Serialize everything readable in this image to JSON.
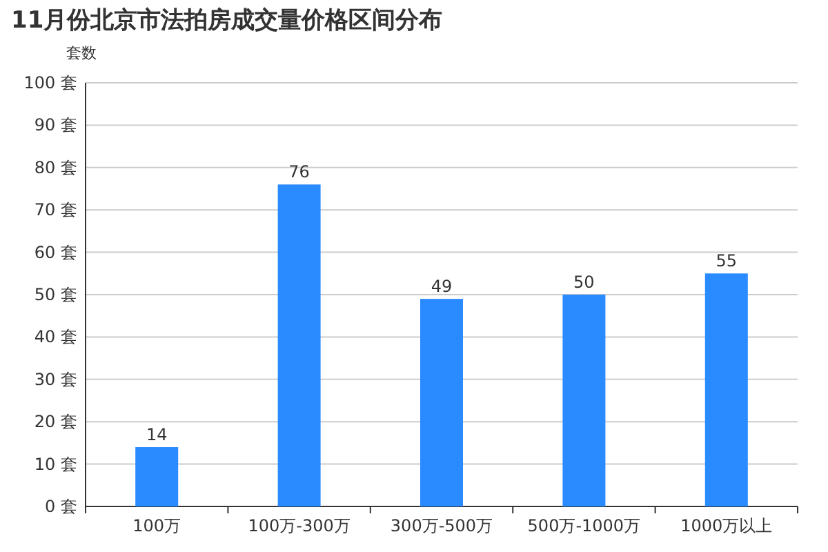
{
  "chart_data": {
    "type": "bar",
    "title": "11月份北京市法拍房成交量价格区间分布",
    "ylabel": "套数",
    "categories": [
      "100万",
      "100万-300万",
      "300万-500万",
      "500万-1000万",
      "1000万以上"
    ],
    "values": [
      14,
      76,
      49,
      50,
      55
    ],
    "color": "#2a8aff",
    "data_labels": true,
    "ylim": [
      0,
      100
    ],
    "yticks": [
      {
        "value": 0,
        "label": "0 套"
      },
      {
        "value": 10,
        "label": "10 套"
      },
      {
        "value": 20,
        "label": "20 套"
      },
      {
        "value": 30,
        "label": "30 套"
      },
      {
        "value": 40,
        "label": "40 套"
      },
      {
        "value": 50,
        "label": "50 套"
      },
      {
        "value": 60,
        "label": "60 套"
      },
      {
        "value": 70,
        "label": "70 套"
      },
      {
        "value": 80,
        "label": "80 套"
      },
      {
        "value": 90,
        "label": "90 套"
      },
      {
        "value": 100,
        "label": "100 套"
      }
    ],
    "grid": "y"
  }
}
